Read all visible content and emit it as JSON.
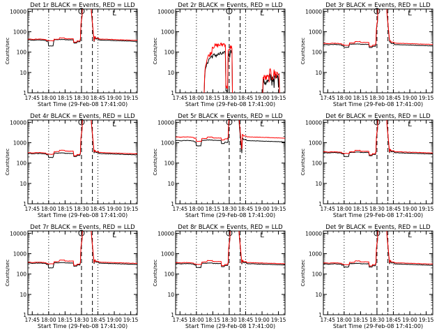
{
  "chart_data": [
    {
      "type": "line",
      "title": "Det 1r BLACK = Events, RED = LLD",
      "xlabel": "Start Time (29-Feb-08 17:41:00)",
      "ylabel": "Counts/sec",
      "variant": "normal",
      "base": 400,
      "peak": 10000,
      "lld_offset": 1.1,
      "dip": 200,
      "hump": 500
    },
    {
      "type": "line",
      "title": "Det 2r BLACK = Events, RED = LLD",
      "xlabel": "Start Time (29-Feb-08 17:41:00)",
      "ylabel": "Counts/sec",
      "variant": "noisy",
      "base": 80,
      "peak": 300,
      "lld_offset": 1.6,
      "dip": 0,
      "hump": 0
    },
    {
      "type": "line",
      "title": "Det 3r BLACK = Events, RED = LLD",
      "xlabel": "Start Time (29-Feb-08 17:41:00)",
      "ylabel": "Counts/sec",
      "variant": "normal",
      "base": 240,
      "peak": 10000,
      "lld_offset": 1.15,
      "dip": 170,
      "hump": 330
    },
    {
      "type": "line",
      "title": "Det 4r BLACK = Events, RED = LLD",
      "xlabel": "Start Time (29-Feb-08 17:41:00)",
      "ylabel": "Counts/sec",
      "variant": "normal",
      "base": 300,
      "peak": 10000,
      "lld_offset": 1.1,
      "dip": 190,
      "hump": 430
    },
    {
      "type": "line",
      "title": "Det 5r BLACK = Events, RED = LLD",
      "xlabel": "Start Time (29-Feb-08 17:41:00)",
      "ylabel": "Counts/sec",
      "variant": "high",
      "base": 1300,
      "peak": 10000,
      "lld_offset": 1.5,
      "dip": 700,
      "hump": 1900
    },
    {
      "type": "line",
      "title": "Det 6r BLACK = Events, RED = LLD",
      "xlabel": "Start Time (29-Feb-08 17:41:00)",
      "ylabel": "Counts/sec",
      "variant": "normal",
      "base": 330,
      "peak": 10000,
      "lld_offset": 1.1,
      "dip": 210,
      "hump": 420
    },
    {
      "type": "line",
      "title": "Det 7r BLACK = Events, RED = LLD",
      "xlabel": "Start Time (29-Feb-08 17:41:00)",
      "ylabel": "Counts/sec",
      "variant": "normal",
      "base": 350,
      "peak": 10000,
      "lld_offset": 1.1,
      "dip": 200,
      "hump": 480
    },
    {
      "type": "line",
      "title": "Det 8r BLACK = Events, RED = LLD",
      "xlabel": "Start Time (29-Feb-08 17:41:00)",
      "ylabel": "Counts/sec",
      "variant": "normal",
      "base": 330,
      "peak": 10000,
      "lld_offset": 1.12,
      "dip": 210,
      "hump": 460
    },
    {
      "type": "line",
      "title": "Det 9r BLACK = Events, RED = LLD",
      "xlabel": "Start Time (29-Feb-08 17:41:00)",
      "ylabel": "Counts/sec",
      "variant": "normal",
      "base": 320,
      "peak": 10000,
      "lld_offset": 1.12,
      "dip": 220,
      "hump": 440
    }
  ],
  "axis": {
    "x_ticks": [
      "17:45",
      "18:00",
      "18:15",
      "18:30",
      "18:45",
      "19:00",
      "19:15"
    ],
    "x_tick_minutes": [
      4,
      19,
      34,
      49,
      64,
      79,
      94
    ],
    "x_range_minutes": [
      0,
      100
    ],
    "y_ticks": [
      "1",
      "10",
      "100",
      "1000",
      "10000"
    ],
    "y_tick_values": [
      1,
      10,
      100,
      1000,
      10000
    ],
    "y_range": [
      1,
      13000
    ],
    "y_scale": "log",
    "dotted_minutes": [
      19,
      64
    ],
    "dashed_minutes": [
      49,
      59
    ],
    "circle_marker_minute": 49,
    "bracket_marker_minute": 79,
    "bracket_label": "L"
  },
  "colors": {
    "events": "#000000",
    "lld": "#ff0000",
    "axes": "#000000"
  }
}
